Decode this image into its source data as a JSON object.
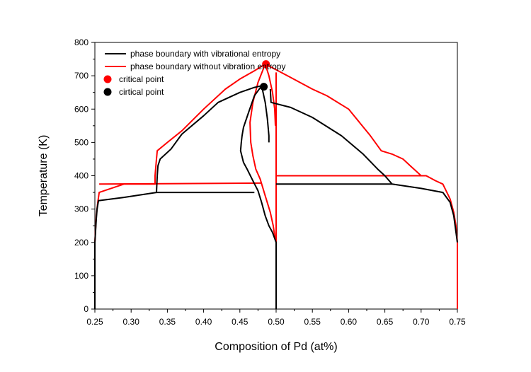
{
  "chart_data": {
    "type": "line",
    "xlabel": "Composition of Pd (at%)",
    "ylabel": "Temperature (K)",
    "xlim": [
      0.25,
      0.75
    ],
    "ylim": [
      0,
      800
    ],
    "x_ticks": [
      "0.25",
      "0.30",
      "0.35",
      "0.40",
      "0.45",
      "0.50",
      "0.55",
      "0.60",
      "0.65",
      "0.70",
      "0.75"
    ],
    "y_ticks": [
      "0",
      "100",
      "200",
      "300",
      "400",
      "500",
      "600",
      "700",
      "800"
    ],
    "grid": false,
    "legend_position": "top-left",
    "colors": {
      "with_vib": "#000000",
      "without_vib": "#ff0000"
    },
    "legend": [
      {
        "label": "phase boundary with vibrational entropy",
        "kind": "line",
        "color": "#000000"
      },
      {
        "label": "phase boundary without vibration entropy",
        "kind": "line",
        "color": "#ff0000"
      },
      {
        "label": "critical point",
        "kind": "marker",
        "color": "#ff0000"
      },
      {
        "label": "cirtical point",
        "kind": "marker",
        "color": "#000000"
      }
    ],
    "series": [
      {
        "name": "phase boundary without vibration entropy",
        "color": "#ff0000",
        "segments": [
          [
            [
              0.25,
              0
            ],
            [
              0.25,
              200
            ],
            [
              0.252,
              280
            ],
            [
              0.254,
              320
            ],
            [
              0.256,
              350
            ],
            [
              0.29,
              375
            ],
            [
              0.333,
              375
            ],
            [
              0.333,
              400
            ],
            [
              0.335,
              450
            ],
            [
              0.336,
              475
            ],
            [
              0.35,
              500
            ],
            [
              0.37,
              535
            ],
            [
              0.4,
              600
            ],
            [
              0.43,
              660
            ],
            [
              0.45,
              690
            ],
            [
              0.47,
              715
            ],
            [
              0.485,
              735
            ],
            [
              0.5,
              718
            ],
            [
              0.52,
              695
            ],
            [
              0.55,
              660
            ],
            [
              0.57,
              640
            ],
            [
              0.6,
              600
            ],
            [
              0.63,
              520
            ],
            [
              0.645,
              475
            ],
            [
              0.66,
              465
            ],
            [
              0.675,
              450
            ],
            [
              0.685,
              430
            ],
            [
              0.695,
              410
            ],
            [
              0.7,
              400
            ],
            [
              0.707,
              400
            ],
            [
              0.72,
              385
            ],
            [
              0.73,
              375
            ],
            [
              0.74,
              330
            ],
            [
              0.745,
              290
            ],
            [
              0.748,
              250
            ],
            [
              0.75,
              200
            ],
            [
              0.75,
              0
            ]
          ],
          [
            [
              0.256,
              375
            ],
            [
              0.48,
              378
            ]
          ],
          [
            [
              0.5,
              400
            ],
            [
              0.7,
              400
            ]
          ],
          [
            [
              0.5,
              0
            ],
            [
              0.5,
              710
            ]
          ],
          [
            [
              0.485,
              735
            ],
            [
              0.475,
              680
            ],
            [
              0.468,
              620
            ],
            [
              0.464,
              560
            ],
            [
              0.465,
              500
            ],
            [
              0.468,
              460
            ],
            [
              0.472,
              420
            ],
            [
              0.478,
              390
            ],
            [
              0.485,
              340
            ],
            [
              0.492,
              290
            ],
            [
              0.496,
              250
            ],
            [
              0.498,
              220
            ],
            [
              0.5,
              200
            ]
          ],
          [
            [
              0.485,
              735
            ],
            [
              0.49,
              700
            ],
            [
              0.495,
              650
            ],
            [
              0.498,
              600
            ],
            [
              0.499,
              550
            ]
          ]
        ]
      },
      {
        "name": "phase boundary with vibrational entropy",
        "color": "#000000",
        "segments": [
          [
            [
              0.25,
              0
            ],
            [
              0.25,
              200
            ],
            [
              0.252,
              270
            ],
            [
              0.253,
              300
            ],
            [
              0.255,
              325
            ],
            [
              0.29,
              335
            ],
            [
              0.335,
              350
            ],
            [
              0.336,
              400
            ],
            [
              0.337,
              430
            ],
            [
              0.34,
              450
            ],
            [
              0.355,
              480
            ],
            [
              0.37,
              525
            ],
            [
              0.4,
              580
            ],
            [
              0.42,
              620
            ],
            [
              0.45,
              650
            ],
            [
              0.47,
              665
            ],
            [
              0.48,
              670
            ]
          ],
          [
            [
              0.335,
              350
            ],
            [
              0.47,
              350
            ]
          ],
          [
            [
              0.5,
              375
            ],
            [
              0.66,
              375
            ]
          ],
          [
            [
              0.48,
              670
            ],
            [
              0.47,
              640
            ],
            [
              0.462,
              590
            ],
            [
              0.455,
              545
            ],
            [
              0.453,
              520
            ],
            [
              0.452,
              500
            ],
            [
              0.451,
              475
            ],
            [
              0.455,
              440
            ],
            [
              0.46,
              420
            ],
            [
              0.468,
              385
            ],
            [
              0.475,
              355
            ],
            [
              0.48,
              320
            ],
            [
              0.485,
              280
            ],
            [
              0.49,
              250
            ],
            [
              0.495,
              230
            ],
            [
              0.5,
              200
            ],
            [
              0.5,
              0
            ]
          ],
          [
            [
              0.48,
              670
            ],
            [
              0.485,
              620
            ],
            [
              0.488,
              570
            ],
            [
              0.49,
              520
            ],
            [
              0.49,
              500
            ]
          ],
          [
            [
              0.492,
              660
            ],
            [
              0.493,
              620
            ],
            [
              0.52,
              605
            ],
            [
              0.55,
              575
            ],
            [
              0.59,
              520
            ],
            [
              0.62,
              465
            ],
            [
              0.64,
              420
            ],
            [
              0.65,
              400
            ],
            [
              0.66,
              375
            ],
            [
              0.7,
              362
            ],
            [
              0.73,
              350
            ],
            [
              0.74,
              320
            ],
            [
              0.745,
              280
            ],
            [
              0.75,
              200
            ]
          ]
        ]
      }
    ],
    "critical_points": [
      {
        "name": "critical point",
        "x": 0.486,
        "y": 735,
        "color": "#ff0000"
      },
      {
        "name": "cirtical point",
        "x": 0.483,
        "y": 667,
        "color": "#000000"
      }
    ]
  }
}
